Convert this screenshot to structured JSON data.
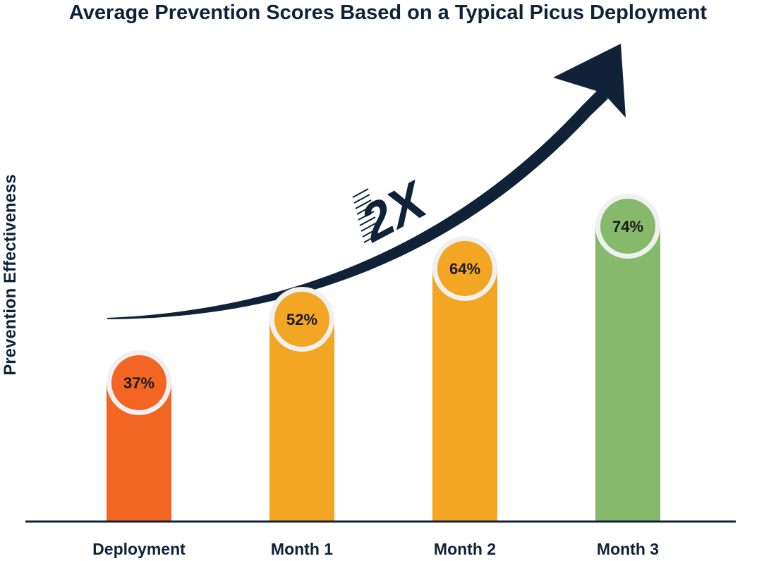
{
  "chart_data": {
    "type": "bar",
    "title": "Average Prevention Scores Based on a Typical Picus Deployment",
    "xlabel": "",
    "ylabel": "Prevention Effectiveness",
    "categories": [
      "Deployment",
      "Month 1",
      "Month 2",
      "Month 3"
    ],
    "values": [
      37,
      52,
      64,
      74
    ],
    "value_labels": [
      "37%",
      "52%",
      "64%",
      "74%"
    ],
    "ylim": [
      0,
      100
    ],
    "grid": false,
    "annotation": "2X",
    "colors": [
      "#f26522",
      "#f2a623",
      "#f2a623",
      "#86b96b"
    ]
  },
  "colors": {
    "axis": "#0f2238",
    "arrow": "#0f2238",
    "label_text": "#1a1a1a",
    "badge_ring": "#f0f0f0"
  }
}
